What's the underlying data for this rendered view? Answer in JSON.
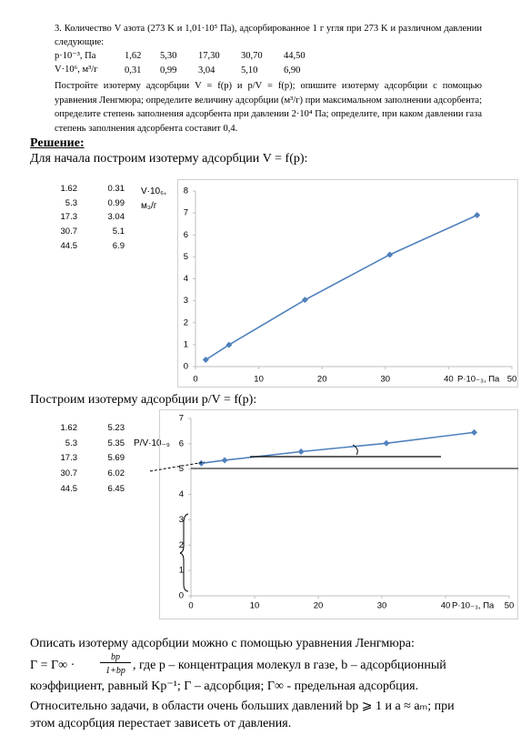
{
  "problem": {
    "statement": "3. Количество V азота (273 K и 1,01·10⁵ Па), адсорбированное 1 г угля при 273 K и различном давлении следующие:",
    "table": {
      "rows": [
        {
          "label": "p·10⁻³, Па",
          "values": [
            "1,62",
            "5,30",
            "17,30",
            "30,70",
            "44,50"
          ]
        },
        {
          "label": "V·10⁶, м³/г",
          "values": [
            "0,31",
            "0,99",
            "3,04",
            "5,10",
            "6,90"
          ]
        }
      ]
    },
    "task": "Постройте изотерму адсорбции V = f(p) и p/V = f(p); опишите изотерму адсорбции с помощью уравнения Ленгмюра; определите величину адсорбции (м³/г) при максимальном заполнении адсорбента; определите степень заполнения адсорбента при давлении 2·10⁴ Па; определите, при каком давлении газа степень заполнения адсорбента составит 0,4."
  },
  "solution_heading": "Решение:",
  "intro_1": "Для начала построим изотерму адсорбции V = f(p):",
  "intro_2": "Построим изотерму адсорбции p/V = f(p):",
  "conclusion": {
    "line_1": "Описать изотерму адсорбции можно с помощью уравнения Ленгмюра:",
    "formula_left": "Г = Г∞ ·",
    "formula_numerator": "bp",
    "formula_denominator": "1+bp",
    "formula_right": ", где p – концентрация молекул в газе, b – адсорбционный",
    "line_3": "коэффициент, равный Kp⁻¹; Г – адсорбция; Г∞ - предельная адсорбция.",
    "line_4": "Относительно задачи, в области очень больших давлений bp ⩾ 1 и a ≈ aₘ; при",
    "line_5": "этом адсорбция перестает зависеть от давления."
  },
  "chart_data": [
    {
      "type": "line",
      "y_label": "V·10₆, м₃/г",
      "x_label": "P·10₋₃, Па",
      "x": [
        1.62,
        5.3,
        17.3,
        30.7,
        44.5
      ],
      "series": [
        {
          "color": "#4f81bd",
          "values": [
            0.31,
            0.99,
            3.04,
            5.1,
            6.9
          ]
        }
      ],
      "xlim": [
        0,
        50
      ],
      "xticks": [
        0,
        10,
        20,
        30,
        40,
        50
      ],
      "ylim": [
        0,
        8
      ],
      "yticks": [
        0,
        1,
        2,
        3,
        4,
        5,
        6,
        7,
        8
      ],
      "grid": false
    },
    {
      "type": "line",
      "y_label": "P/V·10₋₉",
      "x_label": "P·10₋₃, Па",
      "x": [
        1.62,
        5.3,
        17.3,
        30.7,
        44.5
      ],
      "series": [
        {
          "color": "#4f81bd",
          "values": [
            5.23,
            5.35,
            5.69,
            6.02,
            6.45
          ]
        }
      ],
      "xlim": [
        0,
        50
      ],
      "xticks": [
        0,
        10,
        20,
        30,
        40,
        50
      ],
      "ylim": [
        0,
        7
      ],
      "yticks": [
        0,
        1,
        2,
        3,
        4,
        5,
        6,
        7
      ],
      "grid": false
    }
  ]
}
